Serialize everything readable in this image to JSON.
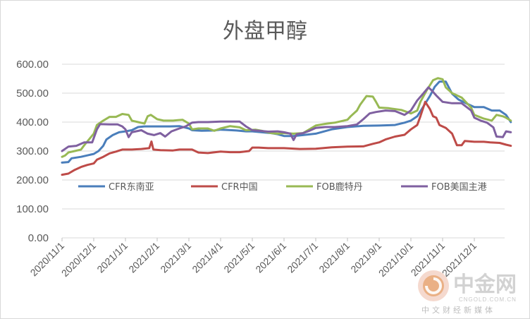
{
  "chart_data": {
    "type": "line",
    "title": "外盘甲醇",
    "ylim": [
      0,
      600
    ],
    "yticks": [
      "0.00",
      "100.00",
      "200.00",
      "300.00",
      "400.00",
      "500.00",
      "600.00"
    ],
    "categories": [
      "2020/11/1",
      "2020/12/1",
      "2021/1/1",
      "2021/2/1",
      "2021/3/1",
      "2021/4/1",
      "2021/5/1",
      "2021/6/1",
      "2021/7/1",
      "2021/8/1",
      "2021/9/1",
      "2021/10/1",
      "2021/11/1",
      "2021/12/1"
    ],
    "legend_position": "bottom",
    "grid": true,
    "series": [
      {
        "name": "CFR东南亚",
        "color": "#4a7ebb",
        "points": [
          [
            0,
            260
          ],
          [
            0.2,
            262
          ],
          [
            0.3,
            275
          ],
          [
            0.6,
            280
          ],
          [
            1.0,
            290
          ],
          [
            1.15,
            300
          ],
          [
            1.3,
            318
          ],
          [
            1.4,
            340
          ],
          [
            1.6,
            355
          ],
          [
            1.8,
            365
          ],
          [
            2.0,
            368
          ],
          [
            2.2,
            372
          ],
          [
            2.4,
            383
          ],
          [
            2.6,
            385
          ],
          [
            3.0,
            385
          ],
          [
            3.4,
            385
          ],
          [
            3.7,
            386
          ],
          [
            4.0,
            378
          ],
          [
            4.1,
            372
          ],
          [
            4.4,
            370
          ],
          [
            4.8,
            371
          ],
          [
            5.0,
            374
          ],
          [
            5.2,
            373
          ],
          [
            5.5,
            371
          ],
          [
            5.8,
            368
          ],
          [
            6.0,
            368
          ],
          [
            6.3,
            365
          ],
          [
            6.6,
            362
          ],
          [
            6.8,
            358
          ],
          [
            7.0,
            352
          ],
          [
            7.3,
            352
          ],
          [
            7.6,
            355
          ],
          [
            8.0,
            360
          ],
          [
            8.5,
            375
          ],
          [
            9.0,
            383
          ],
          [
            9.5,
            387
          ],
          [
            10.0,
            388
          ],
          [
            10.5,
            390
          ],
          [
            10.8,
            398
          ],
          [
            11.0,
            405
          ],
          [
            11.2,
            420
          ],
          [
            11.4,
            455
          ],
          [
            11.6,
            490
          ],
          [
            11.75,
            522
          ],
          [
            11.9,
            540
          ],
          [
            12.1,
            540
          ],
          [
            12.3,
            498
          ],
          [
            12.5,
            478
          ],
          [
            12.8,
            462
          ],
          [
            13.0,
            452
          ],
          [
            13.3,
            452
          ],
          [
            13.55,
            440
          ],
          [
            13.8,
            440
          ],
          [
            14.0,
            425
          ],
          [
            14.15,
            400
          ]
        ]
      },
      {
        "name": "CFR中国",
        "color": "#be4b48",
        "points": [
          [
            0,
            218
          ],
          [
            0.2,
            222
          ],
          [
            0.4,
            235
          ],
          [
            0.6,
            245
          ],
          [
            0.8,
            252
          ],
          [
            1.0,
            257
          ],
          [
            1.1,
            270
          ],
          [
            1.3,
            280
          ],
          [
            1.5,
            292
          ],
          [
            1.7,
            298
          ],
          [
            1.9,
            305
          ],
          [
            2.2,
            305
          ],
          [
            2.5,
            307
          ],
          [
            2.75,
            310
          ],
          [
            2.82,
            333
          ],
          [
            2.88,
            305
          ],
          [
            3.1,
            303
          ],
          [
            3.5,
            302
          ],
          [
            3.7,
            305
          ],
          [
            4.1,
            305
          ],
          [
            4.3,
            295
          ],
          [
            4.6,
            293
          ],
          [
            5.0,
            298
          ],
          [
            5.3,
            296
          ],
          [
            5.6,
            296
          ],
          [
            5.9,
            300
          ],
          [
            6.0,
            312
          ],
          [
            6.2,
            312
          ],
          [
            6.5,
            310
          ],
          [
            7.0,
            310
          ],
          [
            7.5,
            307
          ],
          [
            8.0,
            308
          ],
          [
            8.5,
            313
          ],
          [
            9.0,
            315
          ],
          [
            9.5,
            316
          ],
          [
            9.8,
            325
          ],
          [
            10.0,
            330
          ],
          [
            10.2,
            340
          ],
          [
            10.5,
            350
          ],
          [
            10.8,
            356
          ],
          [
            11.0,
            375
          ],
          [
            11.2,
            390
          ],
          [
            11.3,
            420
          ],
          [
            11.45,
            470
          ],
          [
            11.6,
            445
          ],
          [
            11.7,
            420
          ],
          [
            11.8,
            415
          ],
          [
            11.9,
            390
          ],
          [
            12.1,
            380
          ],
          [
            12.3,
            360
          ],
          [
            12.45,
            320
          ],
          [
            12.6,
            320
          ],
          [
            12.7,
            335
          ],
          [
            13.0,
            332
          ],
          [
            13.3,
            332
          ],
          [
            13.5,
            330
          ],
          [
            13.8,
            328
          ],
          [
            14.0,
            322
          ],
          [
            14.15,
            318
          ]
        ]
      },
      {
        "name": "FOB鹿特丹",
        "color": "#98b954",
        "points": [
          [
            0,
            280
          ],
          [
            0.1,
            285
          ],
          [
            0.2,
            295
          ],
          [
            0.4,
            300
          ],
          [
            0.6,
            305
          ],
          [
            0.7,
            320
          ],
          [
            0.85,
            340
          ],
          [
            1.0,
            360
          ],
          [
            1.1,
            390
          ],
          [
            1.3,
            405
          ],
          [
            1.5,
            418
          ],
          [
            1.7,
            418
          ],
          [
            1.9,
            428
          ],
          [
            2.1,
            425
          ],
          [
            2.2,
            405
          ],
          [
            2.4,
            400
          ],
          [
            2.6,
            395
          ],
          [
            2.7,
            420
          ],
          [
            2.8,
            425
          ],
          [
            3.0,
            410
          ],
          [
            3.2,
            405
          ],
          [
            3.5,
            405
          ],
          [
            3.8,
            408
          ],
          [
            4.0,
            395
          ],
          [
            4.1,
            375
          ],
          [
            4.3,
            378
          ],
          [
            4.6,
            378
          ],
          [
            4.8,
            370
          ],
          [
            5.0,
            378
          ],
          [
            5.3,
            386
          ],
          [
            5.6,
            382
          ],
          [
            5.8,
            372
          ],
          [
            6.1,
            374
          ],
          [
            6.3,
            370
          ],
          [
            6.6,
            362
          ],
          [
            6.8,
            360
          ],
          [
            7.0,
            362
          ],
          [
            7.3,
            360
          ],
          [
            7.6,
            362
          ],
          [
            7.8,
            375
          ],
          [
            8.0,
            388
          ],
          [
            8.3,
            394
          ],
          [
            8.6,
            398
          ],
          [
            9.0,
            408
          ],
          [
            9.1,
            420
          ],
          [
            9.3,
            440
          ],
          [
            9.4,
            460
          ],
          [
            9.6,
            490
          ],
          [
            9.8,
            488
          ],
          [
            9.9,
            470
          ],
          [
            10.0,
            450
          ],
          [
            10.3,
            448
          ],
          [
            10.7,
            442
          ],
          [
            11.0,
            430
          ],
          [
            11.2,
            440
          ],
          [
            11.3,
            470
          ],
          [
            11.5,
            510
          ],
          [
            11.7,
            545
          ],
          [
            11.85,
            552
          ],
          [
            12.0,
            548
          ],
          [
            12.1,
            520
          ],
          [
            12.3,
            500
          ],
          [
            12.6,
            485
          ],
          [
            12.9,
            450
          ],
          [
            13.0,
            425
          ],
          [
            13.3,
            412
          ],
          [
            13.55,
            405
          ],
          [
            13.7,
            425
          ],
          [
            13.9,
            420
          ],
          [
            14.0,
            415
          ],
          [
            14.15,
            405
          ]
        ]
      },
      {
        "name": "FOB美国主港",
        "color": "#7f60a0",
        "points": [
          [
            0,
            300
          ],
          [
            0.2,
            315
          ],
          [
            0.45,
            318
          ],
          [
            0.7,
            330
          ],
          [
            0.95,
            330
          ],
          [
            1.1,
            375
          ],
          [
            1.2,
            393
          ],
          [
            1.5,
            392
          ],
          [
            1.75,
            392
          ],
          [
            1.9,
            385
          ],
          [
            2.0,
            375
          ],
          [
            2.1,
            348
          ],
          [
            2.2,
            365
          ],
          [
            2.5,
            372
          ],
          [
            2.7,
            360
          ],
          [
            2.9,
            355
          ],
          [
            3.1,
            362
          ],
          [
            3.25,
            350
          ],
          [
            3.45,
            368
          ],
          [
            3.7,
            378
          ],
          [
            3.9,
            385
          ],
          [
            4.1,
            398
          ],
          [
            4.3,
            400
          ],
          [
            4.6,
            400
          ],
          [
            5.0,
            402
          ],
          [
            5.3,
            402
          ],
          [
            5.6,
            402
          ],
          [
            5.8,
            385
          ],
          [
            6.0,
            372
          ],
          [
            6.2,
            370
          ],
          [
            6.5,
            367
          ],
          [
            6.8,
            368
          ],
          [
            7.0,
            365
          ],
          [
            7.2,
            360
          ],
          [
            7.3,
            338
          ],
          [
            7.4,
            358
          ],
          [
            7.6,
            362
          ],
          [
            7.8,
            370
          ],
          [
            8.0,
            380
          ],
          [
            8.3,
            383
          ],
          [
            8.6,
            383
          ],
          [
            9.0,
            386
          ],
          [
            9.3,
            392
          ],
          [
            9.5,
            410
          ],
          [
            9.7,
            430
          ],
          [
            9.9,
            435
          ],
          [
            10.2,
            440
          ],
          [
            10.5,
            438
          ],
          [
            10.8,
            425
          ],
          [
            11.0,
            440
          ],
          [
            11.2,
            475
          ],
          [
            11.4,
            500
          ],
          [
            11.55,
            520
          ],
          [
            11.65,
            510
          ],
          [
            11.8,
            492
          ],
          [
            12.0,
            470
          ],
          [
            12.3,
            465
          ],
          [
            12.6,
            465
          ],
          [
            12.9,
            440
          ],
          [
            13.0,
            415
          ],
          [
            13.2,
            405
          ],
          [
            13.4,
            398
          ],
          [
            13.6,
            382
          ],
          [
            13.7,
            350
          ],
          [
            13.9,
            348
          ],
          [
            14.0,
            368
          ],
          [
            14.15,
            365
          ]
        ]
      }
    ]
  },
  "watermark": {
    "brand": "中金网",
    "url": "CNGOLD.COM.CN",
    "slogan": "中文财经新媒体"
  }
}
